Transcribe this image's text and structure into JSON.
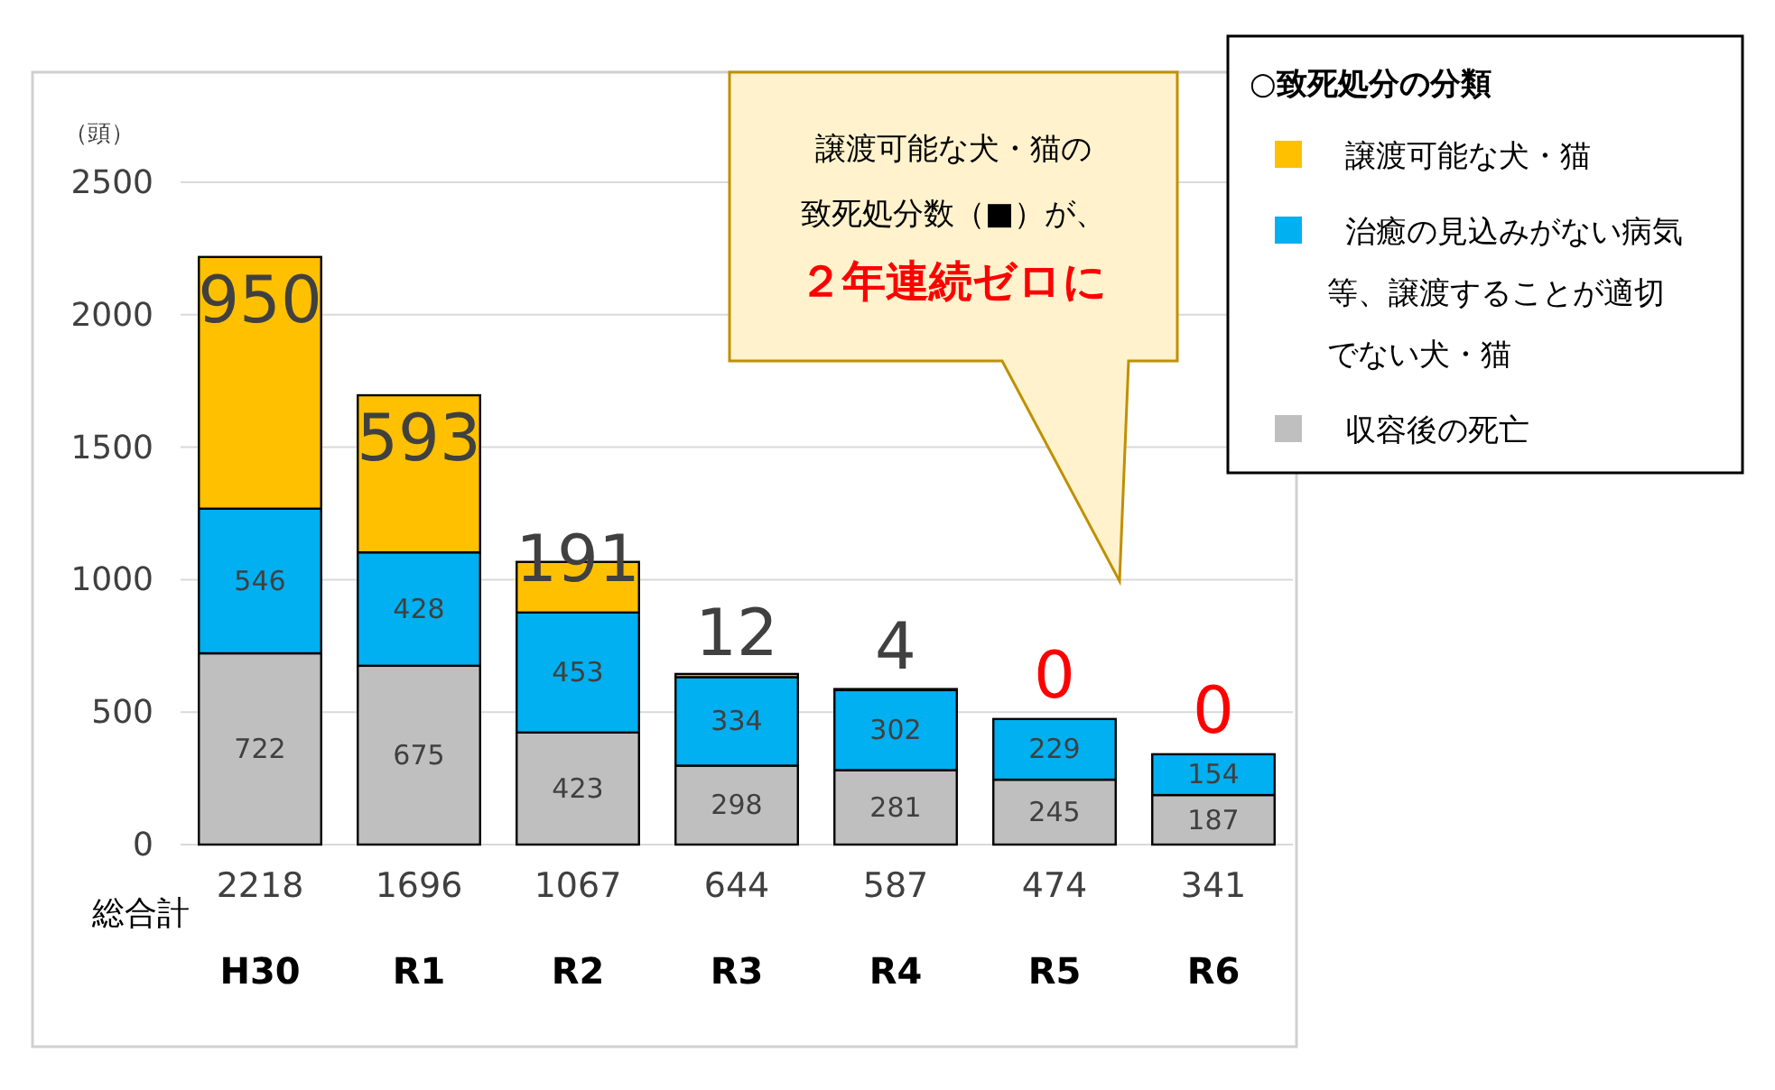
{
  "chart_data": {
    "type": "bar",
    "stacked": true,
    "ylabel": "（頭）",
    "categories": [
      "H30",
      "R1",
      "R2",
      "R3",
      "R4",
      "R5",
      "R6"
    ],
    "series": [
      {
        "name": "収容後の死亡",
        "color": "#bfbfbf",
        "values": [
          722,
          675,
          423,
          298,
          281,
          245,
          187
        ]
      },
      {
        "name": "治癒の見込みがない病気等、譲渡することが適切でない犬・猫",
        "color": "#00b0f0",
        "values": [
          546,
          428,
          453,
          334,
          302,
          229,
          154
        ]
      },
      {
        "name": "譲渡可能な犬・猫",
        "color": "#ffc000",
        "values": [
          950,
          593,
          191,
          12,
          4,
          0,
          0
        ]
      }
    ],
    "data_labels": true,
    "totals": [
      "2218",
      "1696",
      "1067",
      "644",
      "587",
      "474",
      "341"
    ],
    "ylim": [
      0,
      2500
    ],
    "yticks": [
      0,
      500,
      1000,
      1500,
      2000,
      2500
    ],
    "grid": "y",
    "legend": "top right",
    "legend_title": "○致死処分の分類",
    "annotations": [
      "総合計",
      "譲渡可能な犬・猫の",
      "致死処分数（■）が、",
      "２年連続ゼロに"
    ]
  }
}
